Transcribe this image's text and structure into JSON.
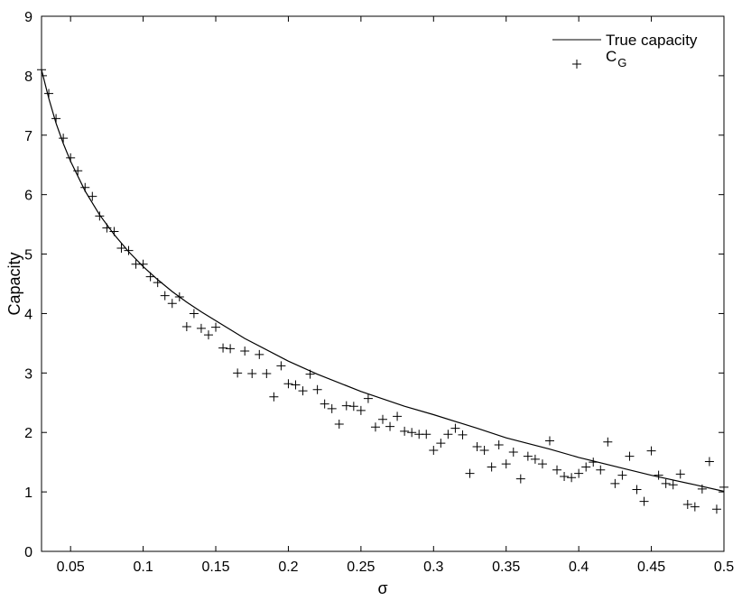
{
  "chart_data": {
    "type": "line+scatter",
    "xlabel": "σ",
    "ylabel": "Capacity",
    "xlim": [
      0.03,
      0.5
    ],
    "ylim": [
      0,
      9
    ],
    "xticks": [
      "0.05",
      "0.1",
      "0.15",
      "0.2",
      "0.25",
      "0.3",
      "0.35",
      "0.4",
      "0.45",
      "0.5"
    ],
    "xtick_values": [
      0.05,
      0.1,
      0.15,
      0.2,
      0.25,
      0.3,
      0.35,
      0.4,
      0.45,
      0.5
    ],
    "yticks": [
      "0",
      "1",
      "2",
      "3",
      "4",
      "5",
      "6",
      "7",
      "8",
      "9"
    ],
    "ytick_values": [
      0,
      1,
      2,
      3,
      4,
      5,
      6,
      7,
      8,
      9
    ],
    "grid": false,
    "legend_position": "top-right",
    "colors": {
      "line": "#000000",
      "markers": "#000000"
    },
    "series": [
      {
        "name": "True capacity",
        "style": "line",
        "x": [
          0.03,
          0.035,
          0.04,
          0.045,
          0.05,
          0.06,
          0.07,
          0.08,
          0.09,
          0.1,
          0.11,
          0.12,
          0.13,
          0.14,
          0.15,
          0.17,
          0.2,
          0.22,
          0.25,
          0.28,
          0.3,
          0.33,
          0.35,
          0.38,
          0.4,
          0.43,
          0.45,
          0.48,
          0.5
        ],
        "y": [
          8.1,
          7.62,
          7.2,
          6.86,
          6.56,
          6.06,
          5.66,
          5.33,
          5.04,
          4.79,
          4.57,
          4.37,
          4.19,
          4.03,
          3.88,
          3.58,
          3.2,
          2.98,
          2.69,
          2.44,
          2.3,
          2.07,
          1.91,
          1.72,
          1.58,
          1.4,
          1.28,
          1.12,
          1.01
        ]
      },
      {
        "name": "C_G",
        "legend_label": "C",
        "legend_subscript": "G",
        "style": "plus-markers",
        "x": [
          0.03,
          0.035,
          0.04,
          0.045,
          0.05,
          0.055,
          0.06,
          0.065,
          0.07,
          0.075,
          0.08,
          0.085,
          0.09,
          0.095,
          0.1,
          0.105,
          0.11,
          0.115,
          0.12,
          0.125,
          0.13,
          0.135,
          0.14,
          0.145,
          0.15,
          0.155,
          0.16,
          0.165,
          0.17,
          0.175,
          0.18,
          0.185,
          0.19,
          0.195,
          0.2,
          0.205,
          0.21,
          0.215,
          0.22,
          0.225,
          0.23,
          0.235,
          0.24,
          0.245,
          0.25,
          0.255,
          0.26,
          0.265,
          0.27,
          0.275,
          0.28,
          0.285,
          0.29,
          0.295,
          0.3,
          0.305,
          0.31,
          0.315,
          0.32,
          0.325,
          0.33,
          0.335,
          0.34,
          0.345,
          0.35,
          0.355,
          0.36,
          0.365,
          0.37,
          0.375,
          0.38,
          0.385,
          0.39,
          0.395,
          0.4,
          0.405,
          0.41,
          0.415,
          0.42,
          0.425,
          0.43,
          0.435,
          0.44,
          0.445,
          0.45,
          0.455,
          0.46,
          0.465,
          0.47,
          0.475,
          0.48,
          0.485,
          0.49,
          0.495,
          0.5
        ],
        "y": [
          8.1,
          7.7,
          7.28,
          6.95,
          6.62,
          6.4,
          6.12,
          5.97,
          5.64,
          5.44,
          5.38,
          5.1,
          5.06,
          4.83,
          4.83,
          4.62,
          4.52,
          4.3,
          4.17,
          4.28,
          3.78,
          4.0,
          3.75,
          3.64,
          3.77,
          3.42,
          3.41,
          3.0,
          3.37,
          2.99,
          3.31,
          2.99,
          2.6,
          3.12,
          2.82,
          2.8,
          2.7,
          2.98,
          2.72,
          2.48,
          2.4,
          2.14,
          2.45,
          2.44,
          2.37,
          2.57,
          2.09,
          2.22,
          2.1,
          2.27,
          2.02,
          2.0,
          1.97,
          1.97,
          1.7,
          1.82,
          1.97,
          2.07,
          1.96,
          1.31,
          1.76,
          1.7,
          1.42,
          1.79,
          1.47,
          1.67,
          1.22,
          1.6,
          1.55,
          1.47,
          1.86,
          1.37,
          1.26,
          1.24,
          1.31,
          1.42,
          1.5,
          1.37,
          1.84,
          1.14,
          1.28,
          1.6,
          1.04,
          0.84,
          1.69,
          1.28,
          1.14,
          1.12,
          1.3,
          0.79,
          0.75,
          1.05,
          1.51,
          0.71,
          1.08
        ]
      }
    ]
  }
}
